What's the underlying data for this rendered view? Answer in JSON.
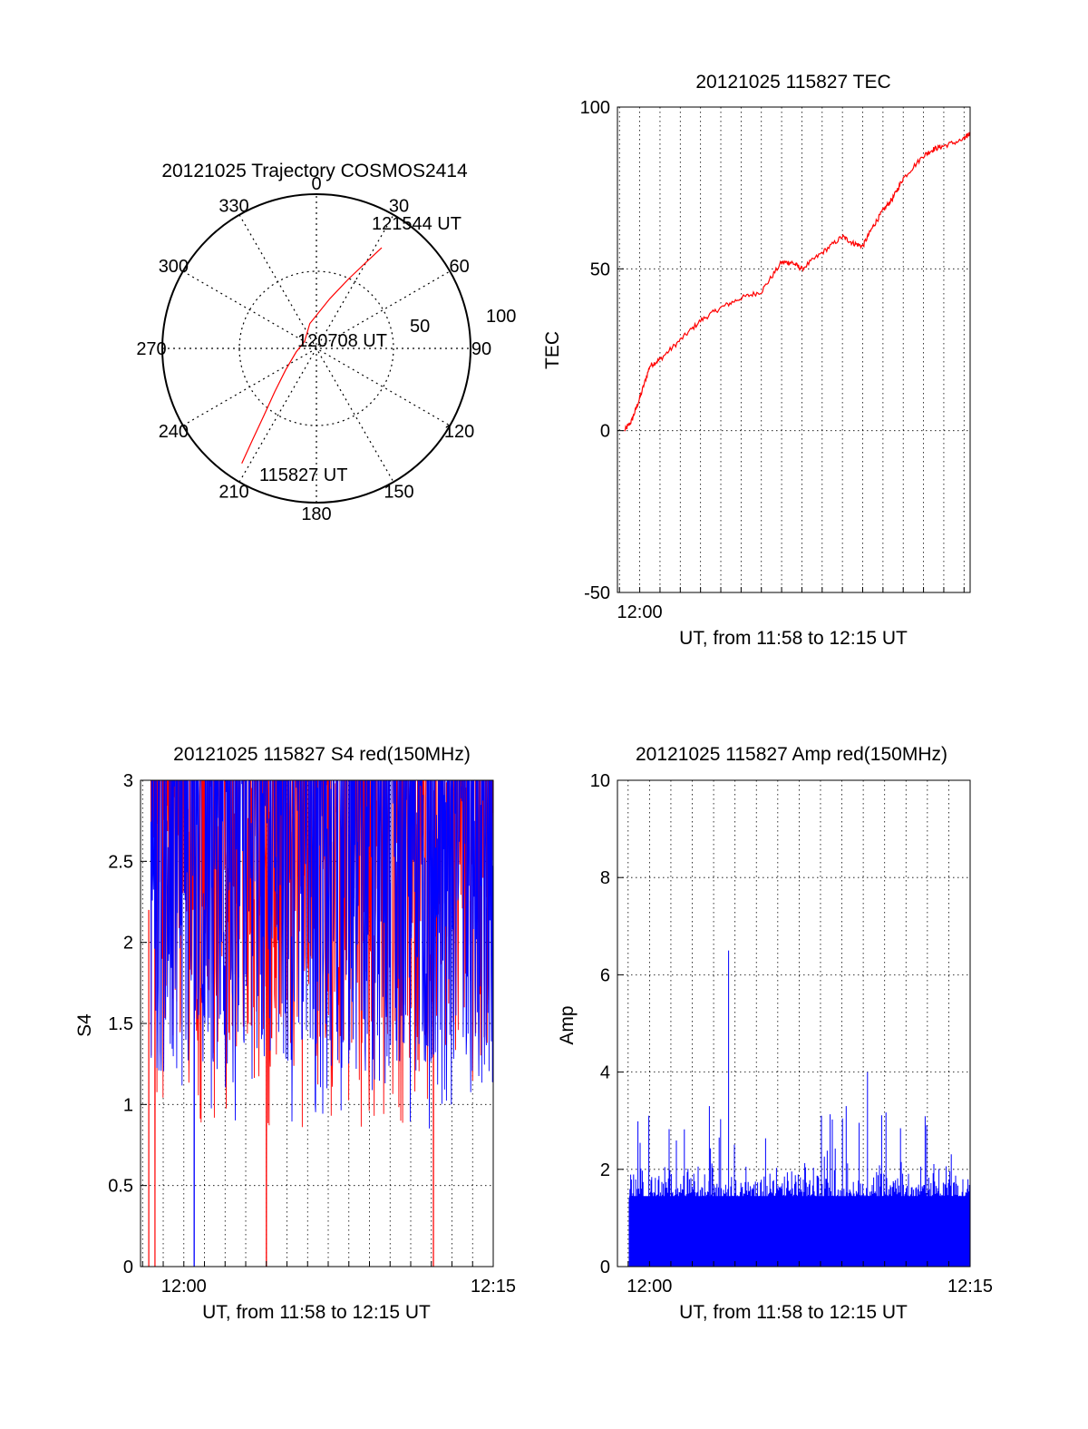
{
  "colors": {
    "red": "#ff0000",
    "blue": "#0000ff",
    "axis": "#000000",
    "grid": "#000000"
  },
  "chart_data": [
    {
      "id": "trajectory",
      "type": "polar",
      "title": "20121025 Trajectory COSMOS2414",
      "grid": true,
      "azimuth_labels": [
        "0",
        "30",
        "60",
        "90",
        "120",
        "150",
        "180",
        "210",
        "240",
        "270",
        "300",
        "330"
      ],
      "radial_labels": [
        "50",
        "100"
      ],
      "track": {
        "color": "red",
        "points": [
          {
            "azimuth": 213,
            "elevation": 10
          },
          {
            "azimuth": 215,
            "elevation": 25
          },
          {
            "azimuth": 218,
            "elevation": 40
          },
          {
            "azimuth": 224,
            "elevation": 55
          },
          {
            "azimuth": 235,
            "elevation": 68
          },
          {
            "azimuth": 260,
            "elevation": 78
          },
          {
            "azimuth": 300,
            "elevation": 82
          },
          {
            "azimuth": 345,
            "elevation": 75
          },
          {
            "azimuth": 15,
            "elevation": 60
          },
          {
            "azimuth": 25,
            "elevation": 45
          },
          {
            "azimuth": 30,
            "elevation": 32
          },
          {
            "azimuth": 33,
            "elevation": 20
          }
        ]
      },
      "annotations": [
        "121544 UT",
        "120708 UT",
        "115827 UT"
      ]
    },
    {
      "id": "tec",
      "type": "line",
      "title": "20121025 115827 TEC",
      "xlabel": "UT, from 11:58 to 12:15 UT",
      "ylabel": "TEC",
      "xlim": [
        -1.1,
        16.3
      ],
      "ylim": [
        -50,
        100
      ],
      "yticks": [
        "-50",
        "0",
        "50",
        "100"
      ],
      "xtick_labels": [
        {
          "x": 0,
          "label": "12:00"
        }
      ],
      "grid": true,
      "series": [
        {
          "color": "red",
          "x": [
            -0.75,
            -0.4,
            0,
            0.5,
            1,
            2,
            3,
            4,
            5,
            6,
            7,
            7.5,
            8,
            9,
            10,
            10.5,
            11,
            11.5,
            12,
            12.5,
            13,
            14,
            14.5,
            15,
            16,
            16.3
          ],
          "y": [
            0,
            3,
            10,
            20,
            22,
            28,
            34,
            38,
            41,
            43,
            52,
            52,
            50,
            55,
            60,
            58,
            57,
            63,
            68,
            72,
            78,
            85,
            87,
            88,
            90,
            92
          ]
        }
      ]
    },
    {
      "id": "s4",
      "type": "line",
      "title": "20121025 115827 S4 red(150MHz)",
      "xlabel": "UT, from 11:58 to 12:15 UT",
      "ylabel": "S4",
      "xlim": [
        -2.1,
        15
      ],
      "ylim": [
        0,
        3
      ],
      "yticks": [
        "0",
        "0.5",
        "1",
        "1.5",
        "2",
        "2.5",
        "3"
      ],
      "xtick_labels": [
        {
          "x": 0,
          "label": "12:00"
        },
        {
          "x": 15,
          "label": "12:15"
        }
      ],
      "grid": true,
      "series": [
        {
          "color": "red",
          "noise": {
            "low": 1.35,
            "clip": 3.0
          },
          "dropouts": [
            -1.7,
            -1.4,
            4.0,
            12.1
          ]
        },
        {
          "color": "blue",
          "noise": {
            "low": 1.2,
            "clip": 3.0
          },
          "dropouts": [
            0.5
          ]
        }
      ]
    },
    {
      "id": "amp",
      "type": "bar",
      "title": "20121025 115827 Amp red(150MHz)",
      "xlabel": "UT, from 11:58 to 12:15 UT",
      "ylabel": "Amp",
      "xlim": [
        -1.5,
        15
      ],
      "ylim": [
        0,
        10
      ],
      "yticks": [
        "0",
        "2",
        "4",
        "6",
        "8",
        "10"
      ],
      "xtick_labels": [
        {
          "x": 0,
          "label": "12:00"
        },
        {
          "x": 15,
          "label": "12:15"
        }
      ],
      "grid": true,
      "series": [
        {
          "color": "blue",
          "base_band": [
            1.4,
            2.2
          ],
          "x_start": -0.95,
          "peaks": [
            {
              "x": 3.7,
              "y": 6.5
            },
            {
              "x": 10.2,
              "y": 4.0
            },
            {
              "x": 2.8,
              "y": 3.3
            },
            {
              "x": 9.2,
              "y": 3.3
            }
          ]
        }
      ]
    }
  ]
}
